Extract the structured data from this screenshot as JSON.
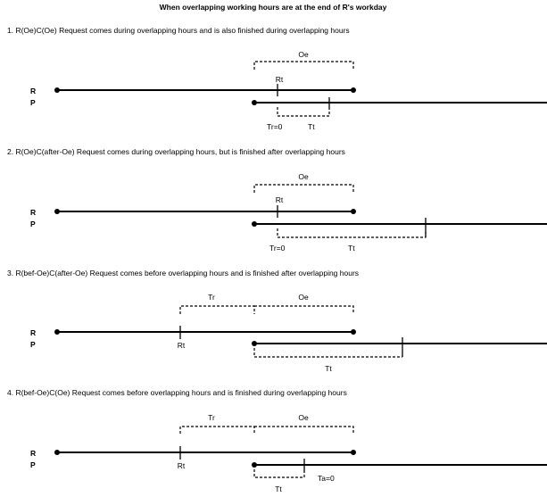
{
  "title": "When overlapping working hours are at the end of R's workday",
  "rows": {
    "r": "R",
    "p": "P"
  },
  "scenarios": [
    {
      "caption": "1. R(Oe)C(Oe) Request comes during overlapping hours and is also finished during overlapping hours",
      "labels": {
        "oe": "Oe",
        "rt": "Rt",
        "tr": "Tr=0",
        "tt": "Tt"
      }
    },
    {
      "caption": "2. R(Oe)C(after-Oe) Request comes during overlapping hours, but is finished after overlapping hours",
      "labels": {
        "oe": "Oe",
        "rt": "Rt",
        "tr": "Tr=0",
        "tt": "Tt"
      }
    },
    {
      "caption": "3. R(bef-Oe)C(after-Oe) Request comes before overlapping hours and is finished after overlapping hours",
      "labels": {
        "tr": "Tr",
        "oe": "Oe",
        "rt": "Rt",
        "tt": "Tt"
      }
    },
    {
      "caption": "4. R(bef-Oe)C(Oe) Request comes before overlapping hours and is finished during overlapping hours",
      "labels": {
        "tr": "Tr",
        "oe": "Oe",
        "rt": "Rt",
        "tt": "Tt",
        "ta": "Ta=0"
      }
    }
  ]
}
